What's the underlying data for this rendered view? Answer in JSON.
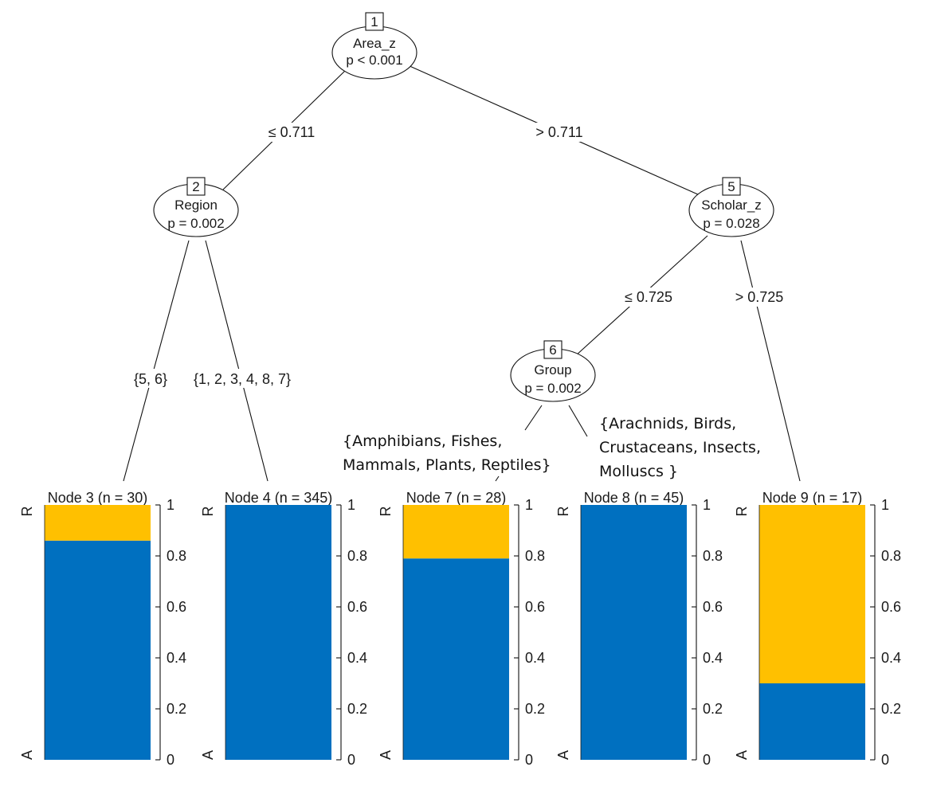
{
  "inner_nodes": [
    {
      "id": "1",
      "variable": "Area_z",
      "pvalue": "p < 0.001"
    },
    {
      "id": "2",
      "variable": "Region",
      "pvalue": "p = 0.002"
    },
    {
      "id": "5",
      "variable": "Scholar_z",
      "pvalue": "p = 0.028"
    },
    {
      "id": "6",
      "variable": "Group",
      "pvalue": "p = 0.002"
    }
  ],
  "edge_labels": {
    "n1_left": "≤ 0.711",
    "n1_right": "> 0.711",
    "n2_left": "{5, 6}",
    "n2_right": "{1, 2, 3, 4, 8, 7}",
    "n5_left": "≤ 0.725",
    "n5_right": "> 0.725"
  },
  "annotations": {
    "group_left": [
      "{Amphibians, Fishes,",
      "Mammals, Plants, Reptiles}"
    ],
    "group_right": [
      "{Arachnids, Birds,",
      "Crustaceans, Insects,",
      "Molluscs }"
    ]
  },
  "terminal_nodes": [
    {
      "label": "Node 3 (n = 30)"
    },
    {
      "label": "Node 4 (n = 345)"
    },
    {
      "label": "Node 7 (n = 28)"
    },
    {
      "label": "Node 8 (n = 45)"
    },
    {
      "label": "Node 9 (n = 17)"
    }
  ],
  "axis": {
    "class_top": "R",
    "class_bottom": "A",
    "ticks": [
      "0",
      "0.2",
      "0.4",
      "0.6",
      "0.8",
      "1"
    ]
  },
  "colors": {
    "A": "#0070C0",
    "R": "#FFC000"
  },
  "chart_data": {
    "type": "bar",
    "categories": [
      "Node 3",
      "Node 4",
      "Node 7",
      "Node 8",
      "Node 9"
    ],
    "series": [
      {
        "name": "A",
        "values": [
          0.86,
          1.0,
          0.79,
          1.0,
          0.3
        ]
      },
      {
        "name": "R",
        "values": [
          0.14,
          0.0,
          0.21,
          0.0,
          0.7
        ]
      }
    ],
    "ylim": [
      0,
      1
    ]
  }
}
